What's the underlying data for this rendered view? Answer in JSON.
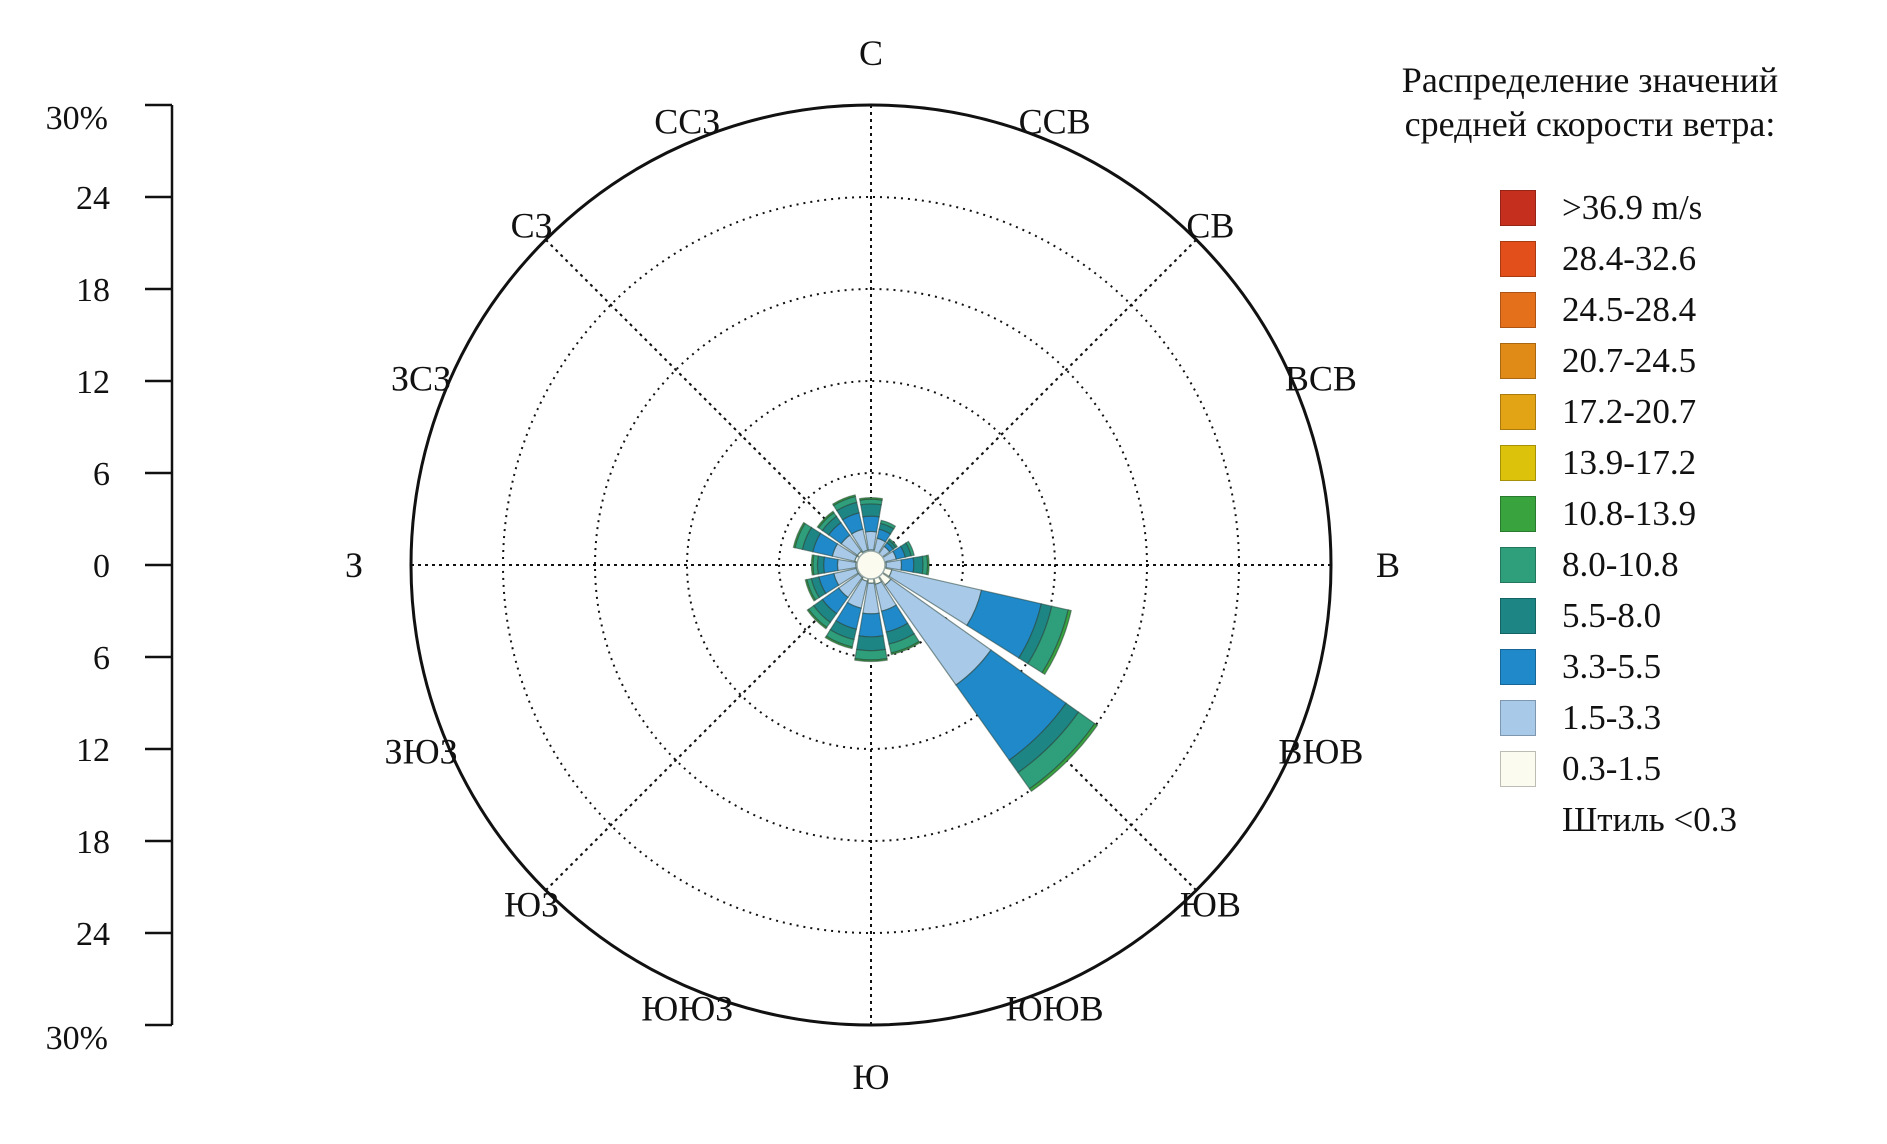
{
  "chart_data": {
    "type": "wind-rose",
    "legend_title": "Распределение значений средней скорости ветра:",
    "calm_label": "Штиль <0.3",
    "scale_ticks_top": [
      "30%",
      "24",
      "18",
      "12",
      "6",
      "0"
    ],
    "scale_ticks_bottom": [
      "6",
      "12",
      "18",
      "24",
      "30%"
    ],
    "radial_max": 30,
    "directions": [
      "С",
      "ССВ",
      "СВ",
      "ВСВ",
      "В",
      "ВЮВ",
      "ЮВ",
      "ЮЮВ",
      "Ю",
      "ЮЮЗ",
      "ЮЗ",
      "ЗЮЗ",
      "З",
      "ЗСЗ",
      "СЗ",
      "ССЗ"
    ],
    "speed_bins": [
      {
        "label": "0.3-1.5",
        "color": "#fbfbef"
      },
      {
        "label": "1.5-3.3",
        "color": "#a9c9e8"
      },
      {
        "label": "3.3-5.5",
        "color": "#1f89c9"
      },
      {
        "label": "5.5-8.0",
        "color": "#1e8585"
      },
      {
        "label": "8.0-10.8",
        "color": "#2f9e7a"
      },
      {
        "label": "10.8-13.9",
        "color": "#39a33e"
      },
      {
        "label": "13.9-17.2",
        "color": "#dcc20b"
      },
      {
        "label": "17.2-20.7",
        "color": "#e2a414"
      },
      {
        "label": "20.7-24.5",
        "color": "#e08a18"
      },
      {
        "label": "24.5-28.4",
        "color": "#e4701c"
      },
      {
        "label": "28.4-32.6",
        "color": "#e24f1a"
      },
      {
        "label": ">36.9 m/s",
        "color": "#c5301e"
      }
    ],
    "frequencies": [
      [
        0.6,
        1.2,
        1.0,
        0.8,
        0.3,
        0.1
      ],
      [
        0.5,
        0.9,
        0.6,
        0.4,
        0.2,
        0.0
      ],
      [
        0.5,
        0.6,
        0.3,
        0.2,
        0.1,
        0.0
      ],
      [
        0.5,
        0.8,
        0.6,
        0.4,
        0.2,
        0.0
      ],
      [
        0.6,
        1.0,
        0.8,
        0.6,
        0.3,
        0.1
      ],
      [
        1.0,
        6.0,
        4.0,
        0.7,
        1.1,
        0.2
      ],
      [
        1.2,
        8.0,
        6.0,
        1.0,
        1.3,
        0.2
      ],
      [
        0.9,
        1.8,
        1.4,
        0.8,
        0.6,
        0.1
      ],
      [
        0.8,
        2.0,
        1.5,
        0.9,
        0.6,
        0.1
      ],
      [
        0.7,
        1.8,
        1.4,
        0.7,
        0.5,
        0.1
      ],
      [
        0.6,
        1.6,
        1.3,
        0.7,
        0.4,
        0.1
      ],
      [
        0.6,
        1.5,
        1.0,
        0.5,
        0.3,
        0.1
      ],
      [
        0.6,
        1.2,
        0.9,
        0.4,
        0.3,
        0.1
      ],
      [
        0.7,
        1.5,
        1.3,
        0.7,
        0.5,
        0.1
      ],
      [
        0.7,
        1.3,
        1.0,
        0.5,
        0.3,
        0.1
      ],
      [
        0.6,
        1.4,
        1.1,
        0.7,
        0.4,
        0.1
      ]
    ]
  }
}
